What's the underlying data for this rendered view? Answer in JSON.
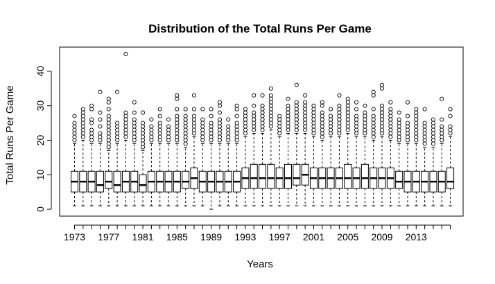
{
  "chart_data": {
    "type": "boxplot",
    "title": "Distribution of the Total Runs Per Game",
    "xlabel": "Years",
    "ylabel": "Total Runs Per Game",
    "ylim": [
      -2,
      47
    ],
    "y_ticks": [
      0,
      10,
      20,
      30,
      40
    ],
    "x_tick_labels": [
      "1973",
      "1977",
      "1981",
      "1985",
      "1989",
      "1993",
      "1997",
      "2001",
      "2005",
      "2009",
      "2013"
    ],
    "grid": false,
    "legend": "none",
    "colors": {
      "box_fill": "#ffffff",
      "stroke": "#000000",
      "outlier": "#000000"
    },
    "boxes": [
      {
        "year": 1973,
        "q1": 5,
        "median": 8,
        "q3": 11,
        "lower_whisker": 1,
        "upper_whisker": 19,
        "outliers": [
          20,
          21,
          22,
          23,
          24,
          25,
          27
        ]
      },
      {
        "year": 1974,
        "q1": 5,
        "median": 8,
        "q3": 11,
        "lower_whisker": 1,
        "upper_whisker": 20,
        "outliers": [
          21,
          22,
          23,
          24,
          25,
          26,
          27,
          28,
          29
        ]
      },
      {
        "year": 1975,
        "q1": 5,
        "median": 8,
        "q3": 11,
        "lower_whisker": 1,
        "upper_whisker": 19,
        "outliers": [
          20,
          21,
          22,
          23,
          25,
          26,
          29,
          30
        ]
      },
      {
        "year": 1976,
        "q1": 5,
        "median": 7,
        "q3": 11,
        "lower_whisker": 1,
        "upper_whisker": 19,
        "outliers": [
          20,
          21,
          22,
          24,
          26,
          28,
          34
        ]
      },
      {
        "year": 1977,
        "q1": 6,
        "median": 8,
        "q3": 11,
        "lower_whisker": 1,
        "upper_whisker": 17,
        "outliers": [
          18,
          19,
          20,
          21,
          22,
          23,
          24,
          25,
          26,
          27,
          29,
          31,
          32
        ]
      },
      {
        "year": 1978,
        "q1": 5,
        "median": 7,
        "q3": 11,
        "lower_whisker": 1,
        "upper_whisker": 19,
        "outliers": [
          20,
          21,
          22,
          23,
          24,
          25,
          34
        ]
      },
      {
        "year": 1979,
        "q1": 5,
        "median": 8,
        "q3": 11,
        "lower_whisker": 1,
        "upper_whisker": 20,
        "outliers": [
          21,
          22,
          23,
          24,
          25,
          26,
          27,
          28,
          45
        ]
      },
      {
        "year": 1980,
        "q1": 5,
        "median": 8,
        "q3": 11,
        "lower_whisker": 1,
        "upper_whisker": 19,
        "outliers": [
          20,
          21,
          22,
          23,
          24,
          25,
          26,
          28,
          31
        ]
      },
      {
        "year": 1981,
        "q1": 5,
        "median": 7,
        "q3": 10,
        "lower_whisker": 1,
        "upper_whisker": 17,
        "outliers": [
          18,
          19,
          20,
          21,
          22,
          23,
          24,
          25,
          28
        ]
      },
      {
        "year": 1982,
        "q1": 5,
        "median": 8,
        "q3": 11,
        "lower_whisker": 1,
        "upper_whisker": 19,
        "outliers": [
          20,
          21,
          22,
          23,
          24,
          26
        ]
      },
      {
        "year": 1983,
        "q1": 5,
        "median": 8,
        "q3": 11,
        "lower_whisker": 1,
        "upper_whisker": 19,
        "outliers": [
          20,
          21,
          22,
          23,
          24,
          25,
          27,
          29
        ]
      },
      {
        "year": 1984,
        "q1": 5,
        "median": 8,
        "q3": 11,
        "lower_whisker": 1,
        "upper_whisker": 19,
        "outliers": [
          20,
          21,
          22,
          23,
          24,
          26
        ]
      },
      {
        "year": 1985,
        "q1": 5,
        "median": 8,
        "q3": 11,
        "lower_whisker": 1,
        "upper_whisker": 19,
        "outliers": [
          20,
          21,
          22,
          23,
          24,
          25,
          26,
          27,
          29,
          32,
          33
        ]
      },
      {
        "year": 1986,
        "q1": 6,
        "median": 8,
        "q3": 11,
        "lower_whisker": 1,
        "upper_whisker": 18,
        "outliers": [
          19,
          20,
          21,
          22,
          23,
          24,
          25,
          26,
          27,
          29
        ]
      },
      {
        "year": 1987,
        "q1": 6,
        "median": 9,
        "q3": 12,
        "lower_whisker": 1,
        "upper_whisker": 21,
        "outliers": [
          22,
          23,
          24,
          25,
          26,
          27,
          29,
          33
        ]
      },
      {
        "year": 1988,
        "q1": 5,
        "median": 8,
        "q3": 11,
        "lower_whisker": 1,
        "upper_whisker": 19,
        "outliers": [
          20,
          21,
          22,
          23,
          24,
          25,
          26,
          29
        ]
      },
      {
        "year": 1989,
        "q1": 5,
        "median": 8,
        "q3": 11,
        "lower_whisker": 0,
        "upper_whisker": 19,
        "outliers": [
          20,
          21,
          22,
          23,
          24,
          25,
          27,
          29
        ]
      },
      {
        "year": 1990,
        "q1": 5,
        "median": 8,
        "q3": 11,
        "lower_whisker": 1,
        "upper_whisker": 19,
        "outliers": [
          20,
          21,
          22,
          23,
          24,
          25,
          26,
          28,
          30,
          31
        ]
      },
      {
        "year": 1991,
        "q1": 5,
        "median": 8,
        "q3": 11,
        "lower_whisker": 1,
        "upper_whisker": 19,
        "outliers": [
          20,
          21,
          22,
          23,
          24,
          26
        ]
      },
      {
        "year": 1992,
        "q1": 5,
        "median": 8,
        "q3": 11,
        "lower_whisker": 1,
        "upper_whisker": 19,
        "outliers": [
          20,
          21,
          22,
          23,
          24,
          25,
          27,
          29,
          30
        ]
      },
      {
        "year": 1993,
        "q1": 6,
        "median": 9,
        "q3": 12,
        "lower_whisker": 1,
        "upper_whisker": 21,
        "outliers": [
          22,
          23,
          24,
          25,
          26,
          27,
          28,
          29
        ]
      },
      {
        "year": 1994,
        "q1": 6,
        "median": 9,
        "q3": 13,
        "lower_whisker": 1,
        "upper_whisker": 22,
        "outliers": [
          23,
          24,
          25,
          26,
          27,
          28,
          30,
          33
        ]
      },
      {
        "year": 1995,
        "q1": 6,
        "median": 9,
        "q3": 13,
        "lower_whisker": 1,
        "upper_whisker": 22,
        "outliers": [
          23,
          24,
          25,
          26,
          27,
          28,
          29,
          30,
          33
        ]
      },
      {
        "year": 1996,
        "q1": 6,
        "median": 9,
        "q3": 13,
        "lower_whisker": 1,
        "upper_whisker": 23,
        "outliers": [
          24,
          25,
          26,
          27,
          28,
          29,
          30,
          31,
          32,
          33,
          35
        ]
      },
      {
        "year": 1997,
        "q1": 6,
        "median": 9,
        "q3": 12,
        "lower_whisker": 1,
        "upper_whisker": 21,
        "outliers": [
          22,
          23,
          24,
          25,
          26,
          27
        ]
      },
      {
        "year": 1998,
        "q1": 6,
        "median": 9,
        "q3": 13,
        "lower_whisker": 1,
        "upper_whisker": 22,
        "outliers": [
          23,
          24,
          25,
          26,
          27,
          28,
          29,
          30,
          32
        ]
      },
      {
        "year": 1999,
        "q1": 7,
        "median": 9,
        "q3": 13,
        "lower_whisker": 1,
        "upper_whisker": 22,
        "outliers": [
          23,
          24,
          25,
          26,
          27,
          28,
          29,
          30,
          31,
          36
        ]
      },
      {
        "year": 2000,
        "q1": 7,
        "median": 10,
        "q3": 13,
        "lower_whisker": 1,
        "upper_whisker": 22,
        "outliers": [
          23,
          24,
          25,
          26,
          27,
          28,
          29,
          30,
          31,
          33
        ]
      },
      {
        "year": 2001,
        "q1": 6,
        "median": 9,
        "q3": 12,
        "lower_whisker": 1,
        "upper_whisker": 21,
        "outliers": [
          22,
          23,
          24,
          25,
          26,
          27,
          28,
          29,
          30
        ]
      },
      {
        "year": 2002,
        "q1": 6,
        "median": 9,
        "q3": 12,
        "lower_whisker": 1,
        "upper_whisker": 20,
        "outliers": [
          21,
          22,
          23,
          24,
          25,
          26,
          27,
          28,
          30,
          31
        ]
      },
      {
        "year": 2003,
        "q1": 6,
        "median": 9,
        "q3": 12,
        "lower_whisker": 1,
        "upper_whisker": 21,
        "outliers": [
          22,
          23,
          24,
          25,
          26,
          27,
          29
        ]
      },
      {
        "year": 2004,
        "q1": 6,
        "median": 9,
        "q3": 12,
        "lower_whisker": 1,
        "upper_whisker": 21,
        "outliers": [
          22,
          23,
          24,
          25,
          26,
          27,
          28,
          29,
          30,
          33
        ]
      },
      {
        "year": 2005,
        "q1": 6,
        "median": 9,
        "q3": 13,
        "lower_whisker": 1,
        "upper_whisker": 22,
        "outliers": [
          23,
          24,
          25,
          26,
          27,
          28,
          29,
          30,
          31,
          32
        ]
      },
      {
        "year": 2006,
        "q1": 6,
        "median": 9,
        "q3": 12,
        "lower_whisker": 1,
        "upper_whisker": 21,
        "outliers": [
          22,
          23,
          24,
          25,
          26,
          27,
          29,
          31
        ]
      },
      {
        "year": 2007,
        "q1": 6,
        "median": 9,
        "q3": 13,
        "lower_whisker": 1,
        "upper_whisker": 21,
        "outliers": [
          22,
          23,
          24,
          25,
          26,
          27,
          28,
          30
        ]
      },
      {
        "year": 2008,
        "q1": 6,
        "median": 9,
        "q3": 12,
        "lower_whisker": 1,
        "upper_whisker": 20,
        "outliers": [
          21,
          22,
          23,
          24,
          25,
          26,
          27,
          29,
          33,
          34
        ]
      },
      {
        "year": 2009,
        "q1": 6,
        "median": 9,
        "q3": 12,
        "lower_whisker": 1,
        "upper_whisker": 21,
        "outliers": [
          22,
          23,
          24,
          25,
          26,
          27,
          28,
          29,
          30,
          35,
          36
        ]
      },
      {
        "year": 2010,
        "q1": 6,
        "median": 9,
        "q3": 12,
        "lower_whisker": 1,
        "upper_whisker": 20,
        "outliers": [
          21,
          22,
          23,
          24,
          25,
          26,
          27,
          28,
          29,
          31
        ]
      },
      {
        "year": 2011,
        "q1": 6,
        "median": 8,
        "q3": 11,
        "lower_whisker": 1,
        "upper_whisker": 19,
        "outliers": [
          20,
          21,
          22,
          23,
          24,
          25,
          26,
          28
        ]
      },
      {
        "year": 2012,
        "q1": 5,
        "median": 8,
        "q3": 11,
        "lower_whisker": 1,
        "upper_whisker": 19,
        "outliers": [
          20,
          21,
          22,
          23,
          24,
          25,
          27,
          31
        ]
      },
      {
        "year": 2013,
        "q1": 5,
        "median": 8,
        "q3": 11,
        "lower_whisker": 1,
        "upper_whisker": 19,
        "outliers": [
          20,
          21,
          22,
          23,
          24,
          25,
          26,
          27,
          28,
          29
        ]
      },
      {
        "year": 2014,
        "q1": 5,
        "median": 8,
        "q3": 11,
        "lower_whisker": 1,
        "upper_whisker": 18,
        "outliers": [
          19,
          20,
          21,
          22,
          23,
          24,
          25,
          29
        ]
      },
      {
        "year": 2015,
        "q1": 5,
        "median": 8,
        "q3": 11,
        "lower_whisker": 1,
        "upper_whisker": 18,
        "outliers": [
          19,
          20,
          21,
          22,
          23,
          24,
          25,
          26
        ]
      },
      {
        "year": 2016,
        "q1": 5,
        "median": 8,
        "q3": 11,
        "lower_whisker": 1,
        "upper_whisker": 19,
        "outliers": [
          20,
          21,
          22,
          23,
          24,
          26,
          32
        ]
      },
      {
        "year": 2017,
        "q1": 6,
        "median": 8,
        "q3": 12,
        "lower_whisker": 1,
        "upper_whisker": 21,
        "outliers": [
          22,
          23,
          24,
          27,
          29
        ]
      }
    ]
  }
}
